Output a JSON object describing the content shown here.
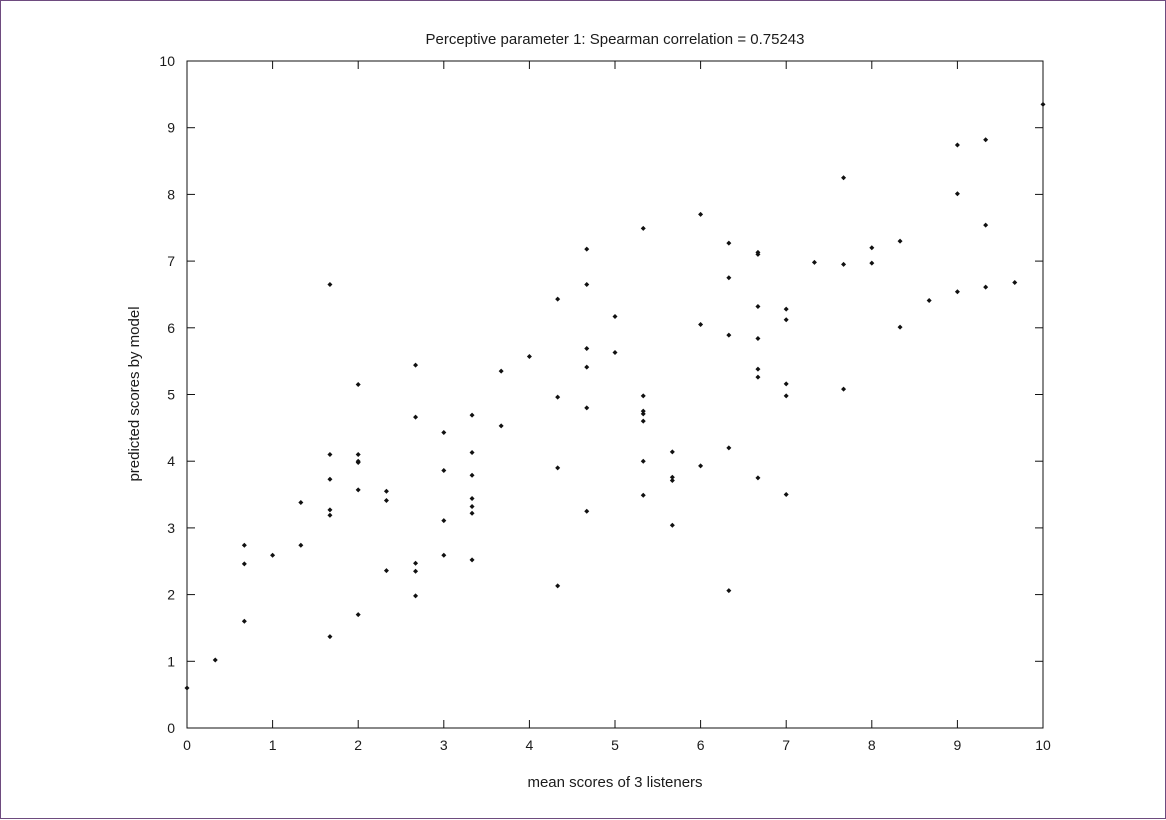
{
  "chart_data": {
    "type": "scatter",
    "title": "Perceptive parameter 1: Spearman correlation = 0.75243",
    "xlabel": "mean scores of 3 listeners",
    "ylabel": "predicted scores by model",
    "xlim": [
      0,
      10
    ],
    "ylim": [
      0,
      10
    ],
    "xticks": [
      0,
      1,
      2,
      3,
      4,
      5,
      6,
      7,
      8,
      9,
      10
    ],
    "yticks": [
      0,
      1,
      2,
      3,
      4,
      5,
      6,
      7,
      8,
      9,
      10
    ],
    "grid": false,
    "legend": false,
    "points": [
      [
        0.0,
        0.6
      ],
      [
        0.33,
        1.02
      ],
      [
        0.67,
        1.6
      ],
      [
        0.67,
        2.46
      ],
      [
        0.67,
        2.74
      ],
      [
        1.0,
        2.59
      ],
      [
        1.33,
        2.74
      ],
      [
        1.33,
        3.38
      ],
      [
        1.67,
        1.37
      ],
      [
        1.67,
        3.19
      ],
      [
        1.67,
        3.27
      ],
      [
        1.67,
        3.73
      ],
      [
        1.67,
        4.1
      ],
      [
        1.67,
        6.65
      ],
      [
        2.0,
        1.7
      ],
      [
        2.0,
        3.57
      ],
      [
        2.0,
        3.98
      ],
      [
        2.0,
        4.0
      ],
      [
        2.0,
        4.1
      ],
      [
        2.0,
        5.15
      ],
      [
        2.33,
        2.36
      ],
      [
        2.33,
        3.41
      ],
      [
        2.33,
        3.55
      ],
      [
        2.67,
        1.98
      ],
      [
        2.67,
        2.35
      ],
      [
        2.67,
        2.47
      ],
      [
        2.67,
        4.66
      ],
      [
        2.67,
        5.44
      ],
      [
        3.0,
        2.59
      ],
      [
        3.0,
        3.11
      ],
      [
        3.0,
        3.86
      ],
      [
        3.0,
        4.43
      ],
      [
        3.33,
        2.52
      ],
      [
        3.33,
        3.22
      ],
      [
        3.33,
        3.32
      ],
      [
        3.33,
        3.44
      ],
      [
        3.33,
        3.79
      ],
      [
        3.33,
        4.13
      ],
      [
        3.33,
        4.69
      ],
      [
        3.67,
        4.53
      ],
      [
        3.67,
        5.35
      ],
      [
        4.0,
        5.57
      ],
      [
        4.33,
        2.13
      ],
      [
        4.33,
        3.9
      ],
      [
        4.33,
        4.96
      ],
      [
        4.33,
        6.43
      ],
      [
        4.67,
        3.25
      ],
      [
        4.67,
        4.8
      ],
      [
        4.67,
        5.41
      ],
      [
        4.67,
        5.69
      ],
      [
        4.67,
        6.65
      ],
      [
        4.67,
        7.18
      ],
      [
        5.0,
        5.63
      ],
      [
        5.0,
        6.17
      ],
      [
        5.33,
        3.49
      ],
      [
        5.33,
        4.0
      ],
      [
        5.33,
        4.6
      ],
      [
        5.33,
        4.71
      ],
      [
        5.33,
        4.75
      ],
      [
        5.33,
        4.98
      ],
      [
        5.33,
        7.49
      ],
      [
        5.67,
        3.04
      ],
      [
        5.67,
        3.71
      ],
      [
        5.67,
        3.76
      ],
      [
        5.67,
        4.14
      ],
      [
        6.0,
        3.93
      ],
      [
        6.0,
        6.05
      ],
      [
        6.0,
        7.7
      ],
      [
        6.33,
        2.06
      ],
      [
        6.33,
        4.2
      ],
      [
        6.33,
        5.89
      ],
      [
        6.33,
        6.75
      ],
      [
        6.33,
        7.27
      ],
      [
        6.67,
        3.75
      ],
      [
        6.67,
        5.26
      ],
      [
        6.67,
        5.38
      ],
      [
        6.67,
        5.84
      ],
      [
        6.67,
        6.32
      ],
      [
        6.67,
        7.1
      ],
      [
        6.67,
        7.13
      ],
      [
        7.0,
        3.5
      ],
      [
        7.0,
        4.98
      ],
      [
        7.0,
        5.16
      ],
      [
        7.0,
        6.12
      ],
      [
        7.0,
        6.28
      ],
      [
        7.33,
        6.98
      ],
      [
        7.67,
        5.08
      ],
      [
        7.67,
        6.95
      ],
      [
        7.67,
        8.25
      ],
      [
        8.0,
        6.97
      ],
      [
        8.0,
        7.2
      ],
      [
        8.33,
        6.01
      ],
      [
        8.33,
        7.3
      ],
      [
        8.67,
        6.41
      ],
      [
        9.0,
        6.54
      ],
      [
        9.0,
        8.01
      ],
      [
        9.0,
        8.74
      ],
      [
        9.33,
        6.61
      ],
      [
        9.33,
        7.54
      ],
      [
        9.33,
        8.82
      ],
      [
        9.67,
        6.68
      ],
      [
        10.0,
        9.35
      ]
    ]
  }
}
